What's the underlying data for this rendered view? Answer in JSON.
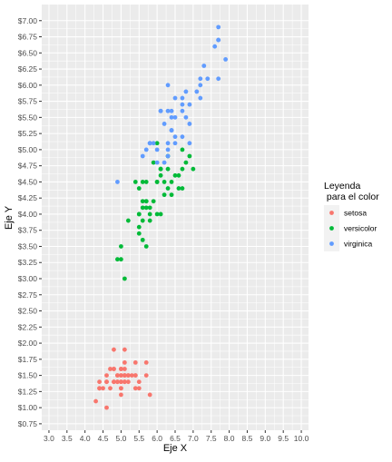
{
  "chart_data": {
    "type": "scatter",
    "title": "",
    "xlabel": "Eje X",
    "ylabel": "Eje Y",
    "xlim": [
      2.8,
      10.2
    ],
    "ylim": [
      0.65,
      7.25
    ],
    "x_ticks": [
      3.0,
      3.5,
      4.0,
      4.5,
      5.0,
      5.5,
      6.0,
      6.5,
      7.0,
      7.5,
      8.0,
      8.5,
      9.0,
      9.5,
      10.0
    ],
    "x_tick_labels": [
      "3.0",
      "3.5",
      "4.0",
      "4.5",
      "5.0",
      "5.5",
      "6.0",
      "6.5",
      "7.0",
      "7.5",
      "8.0",
      "8.5",
      "9.0",
      "9.5",
      "10.0"
    ],
    "y_ticks": [
      0.75,
      1.0,
      1.25,
      1.5,
      1.75,
      2.0,
      2.25,
      2.5,
      2.75,
      3.0,
      3.25,
      3.5,
      3.75,
      4.0,
      4.25,
      4.5,
      4.75,
      5.0,
      5.25,
      5.5,
      5.75,
      6.0,
      6.25,
      6.5,
      6.75,
      7.0
    ],
    "y_tick_labels": [
      "$0.75",
      "$1.00",
      "$1.25",
      "$1.50",
      "$1.75",
      "$2.00",
      "$2.25",
      "$2.50",
      "$2.75",
      "$3.00",
      "$3.25",
      "$3.50",
      "$3.75",
      "$4.00",
      "$4.25",
      "$4.50",
      "$4.75",
      "$5.00",
      "$5.25",
      "$5.50",
      "$5.75",
      "$6.00",
      "$6.25",
      "$6.50",
      "$6.75",
      "$7.00"
    ],
    "grid": true,
    "legend": {
      "title": "Leyenda\n para el color",
      "position": "right"
    },
    "series": [
      {
        "name": "setosa",
        "color": "#F8766D",
        "points": [
          [
            4.3,
            1.1
          ],
          [
            4.4,
            1.3
          ],
          [
            4.4,
            1.3
          ],
          [
            4.4,
            1.4
          ],
          [
            4.5,
            1.3
          ],
          [
            4.6,
            1.0
          ],
          [
            4.6,
            1.4
          ],
          [
            4.6,
            1.5
          ],
          [
            4.6,
            1.4
          ],
          [
            4.7,
            1.3
          ],
          [
            4.7,
            1.6
          ],
          [
            4.8,
            1.4
          ],
          [
            4.8,
            1.6
          ],
          [
            4.8,
            1.4
          ],
          [
            4.8,
            1.9
          ],
          [
            4.8,
            1.6
          ],
          [
            4.9,
            1.4
          ],
          [
            4.9,
            1.5
          ],
          [
            4.9,
            1.5
          ],
          [
            4.9,
            1.4
          ],
          [
            5.0,
            1.4
          ],
          [
            5.0,
            1.5
          ],
          [
            5.0,
            1.6
          ],
          [
            5.0,
            1.2
          ],
          [
            5.0,
            1.3
          ],
          [
            5.0,
            1.5
          ],
          [
            5.0,
            1.6
          ],
          [
            5.0,
            1.4
          ],
          [
            5.0,
            1.3
          ],
          [
            5.1,
            1.4
          ],
          [
            5.1,
            1.5
          ],
          [
            5.1,
            1.5
          ],
          [
            5.1,
            1.7
          ],
          [
            5.1,
            1.9
          ],
          [
            5.1,
            1.6
          ],
          [
            5.1,
            1.4
          ],
          [
            5.1,
            1.5
          ],
          [
            5.2,
            1.5
          ],
          [
            5.2,
            1.4
          ],
          [
            5.2,
            1.5
          ],
          [
            5.3,
            1.5
          ],
          [
            5.4,
            1.7
          ],
          [
            5.4,
            1.5
          ],
          [
            5.4,
            1.3
          ],
          [
            5.4,
            1.5
          ],
          [
            5.5,
            1.4
          ],
          [
            5.5,
            1.3
          ],
          [
            5.7,
            1.5
          ],
          [
            5.7,
            1.7
          ],
          [
            5.8,
            1.2
          ]
        ]
      },
      {
        "name": "versicolor",
        "color": "#00BA38",
        "points": [
          [
            4.9,
            3.3
          ],
          [
            5.0,
            3.3
          ],
          [
            5.0,
            3.5
          ],
          [
            5.1,
            3.0
          ],
          [
            5.2,
            3.9
          ],
          [
            5.4,
            4.5
          ],
          [
            5.5,
            4.0
          ],
          [
            5.5,
            3.8
          ],
          [
            5.5,
            3.7
          ],
          [
            5.5,
            4.0
          ],
          [
            5.5,
            4.4
          ],
          [
            5.6,
            3.9
          ],
          [
            5.6,
            4.5
          ],
          [
            5.6,
            4.1
          ],
          [
            5.6,
            3.6
          ],
          [
            5.6,
            4.2
          ],
          [
            5.7,
            4.5
          ],
          [
            5.7,
            3.5
          ],
          [
            5.7,
            4.2
          ],
          [
            5.7,
            4.2
          ],
          [
            5.7,
            4.1
          ],
          [
            5.8,
            4.1
          ],
          [
            5.8,
            3.9
          ],
          [
            5.8,
            4.0
          ],
          [
            5.9,
            4.8
          ],
          [
            5.9,
            4.2
          ],
          [
            6.0,
            4.0
          ],
          [
            6.0,
            4.5
          ],
          [
            6.0,
            5.1
          ],
          [
            6.0,
            4.5
          ],
          [
            6.1,
            4.7
          ],
          [
            6.1,
            4.0
          ],
          [
            6.1,
            4.7
          ],
          [
            6.1,
            4.6
          ],
          [
            6.2,
            4.5
          ],
          [
            6.2,
            4.3
          ],
          [
            6.3,
            4.9
          ],
          [
            6.3,
            4.7
          ],
          [
            6.3,
            4.4
          ],
          [
            6.4,
            4.5
          ],
          [
            6.4,
            4.3
          ],
          [
            6.5,
            4.6
          ],
          [
            6.6,
            4.6
          ],
          [
            6.6,
            4.4
          ],
          [
            6.7,
            4.4
          ],
          [
            6.7,
            5.0
          ],
          [
            6.7,
            4.7
          ],
          [
            6.8,
            4.8
          ],
          [
            6.9,
            4.9
          ],
          [
            7.0,
            4.7
          ]
        ]
      },
      {
        "name": "virginica",
        "color": "#619CFF",
        "points": [
          [
            4.9,
            4.5
          ],
          [
            5.6,
            4.9
          ],
          [
            5.7,
            5.0
          ],
          [
            5.8,
            5.1
          ],
          [
            5.8,
            5.1
          ],
          [
            5.8,
            5.1
          ],
          [
            5.9,
            5.1
          ],
          [
            6.0,
            4.8
          ],
          [
            6.0,
            5.0
          ],
          [
            6.1,
            5.6
          ],
          [
            6.1,
            5.6
          ],
          [
            6.2,
            5.4
          ],
          [
            6.2,
            4.8
          ],
          [
            6.3,
            6.0
          ],
          [
            6.3,
            5.1
          ],
          [
            6.3,
            5.6
          ],
          [
            6.3,
            4.9
          ],
          [
            6.3,
            5.0
          ],
          [
            6.4,
            5.3
          ],
          [
            6.4,
            5.5
          ],
          [
            6.4,
            5.6
          ],
          [
            6.4,
            5.3
          ],
          [
            6.5,
            5.8
          ],
          [
            6.5,
            5.1
          ],
          [
            6.5,
            5.5
          ],
          [
            6.5,
            5.2
          ],
          [
            6.7,
            5.8
          ],
          [
            6.7,
            5.7
          ],
          [
            6.7,
            5.6
          ],
          [
            6.7,
            5.2
          ],
          [
            6.8,
            5.5
          ],
          [
            6.8,
            5.9
          ],
          [
            6.9,
            5.4
          ],
          [
            6.9,
            5.7
          ],
          [
            6.9,
            5.1
          ],
          [
            7.1,
            5.9
          ],
          [
            7.2,
            6.1
          ],
          [
            7.2,
            6.0
          ],
          [
            7.2,
            5.8
          ],
          [
            7.3,
            6.3
          ],
          [
            7.4,
            6.1
          ],
          [
            7.6,
            6.6
          ],
          [
            7.7,
            6.7
          ],
          [
            7.7,
            6.9
          ],
          [
            7.7,
            6.7
          ],
          [
            7.7,
            6.1
          ],
          [
            7.9,
            6.4
          ]
        ]
      }
    ]
  }
}
